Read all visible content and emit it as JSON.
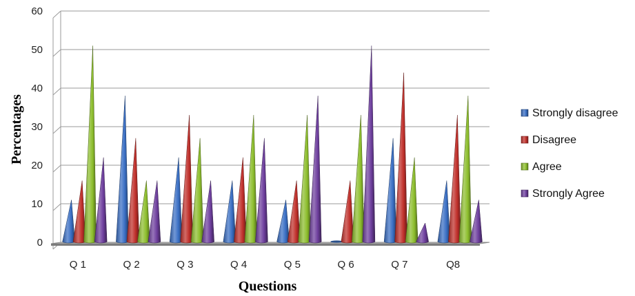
{
  "chart_data": {
    "type": "bar",
    "style": "3d-cone",
    "categories": [
      "Q 1",
      "Q 2",
      "Q 3",
      "Q 4",
      "Q 5",
      "Q 6",
      "Q 7",
      "Q8"
    ],
    "series": [
      {
        "name": "Strongly disagree",
        "color": "#3a6fc4",
        "values": [
          11,
          38,
          22,
          16,
          11,
          0,
          27,
          16
        ]
      },
      {
        "name": "Disagree",
        "color": "#c0302b",
        "values": [
          16,
          27,
          33,
          22,
          16,
          16,
          44,
          33
        ]
      },
      {
        "name": "Agree",
        "color": "#8dbe2d",
        "values": [
          51,
          16,
          27,
          33,
          33,
          33,
          22,
          38
        ]
      },
      {
        "name": "Strongly Agree",
        "color": "#6e3f9e",
        "values": [
          22,
          16,
          16,
          27,
          38,
          51,
          5,
          11
        ]
      }
    ],
    "xlabel": "Questions",
    "ylabel": "Percentages",
    "ylim": [
      0,
      60
    ],
    "yticks": [
      0,
      10,
      20,
      30,
      40,
      50,
      60
    ],
    "grid": true,
    "legend": "right"
  }
}
